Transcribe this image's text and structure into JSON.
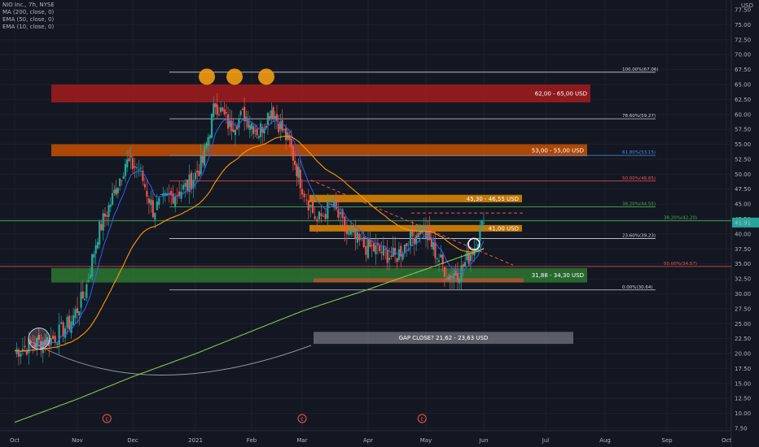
{
  "header": {
    "symbol_line": "NIO Inc., 7h, NYSE",
    "indicators": [
      "MA (200, close, 0)",
      "EMA (50, close, 0)",
      "EMA (10, close, 0)"
    ]
  },
  "colors": {
    "background": "#131722",
    "up": "#26a69a",
    "down": "#ef5350",
    "ma200": "#8bc34a",
    "ema50": "#ff9800",
    "ema10": "#2962ff",
    "resistance_box": "#b71c1c",
    "orange_box": "#d35400",
    "support_box": "#2e7d32",
    "gap_box": "#787b86"
  },
  "chart_data": {
    "type": "candlestick",
    "ylabel": "USD",
    "ylim": [
      7.5,
      77.5
    ],
    "y_ticks": [
      "77.50",
      "75.00",
      "72.50",
      "70.00",
      "67.50",
      "65.00",
      "62.50",
      "60.00",
      "57.50",
      "55.00",
      "52.50",
      "50.00",
      "47.50",
      "45.00",
      "42.50",
      "40.00",
      "37.50",
      "35.00",
      "32.50",
      "30.00",
      "27.50",
      "25.00",
      "22.50",
      "20.00",
      "17.50",
      "15.00",
      "12.50",
      "10.00",
      "7.50"
    ],
    "x_ticks": [
      "Oct",
      "Nov",
      "Dec",
      "2021",
      "Feb",
      "Mar",
      "Apr",
      "May",
      "Jun",
      "Jul",
      "Aug",
      "Sep",
      "Oct"
    ],
    "last_price": "41.91",
    "close_series": [
      {
        "date": "2020-10-01",
        "close": 20.5
      },
      {
        "date": "2020-10-10",
        "close": 21.5
      },
      {
        "date": "2020-10-20",
        "close": 22.5
      },
      {
        "date": "2020-10-28",
        "close": 25.0
      },
      {
        "date": "2020-11-05",
        "close": 30.0
      },
      {
        "date": "2020-11-12",
        "close": 40.0
      },
      {
        "date": "2020-11-20",
        "close": 46.0
      },
      {
        "date": "2020-11-27",
        "close": 52.0
      },
      {
        "date": "2020-12-04",
        "close": 51.0
      },
      {
        "date": "2020-12-11",
        "close": 44.0
      },
      {
        "date": "2020-12-18",
        "close": 46.0
      },
      {
        "date": "2020-12-28",
        "close": 48.0
      },
      {
        "date": "2021-01-05",
        "close": 52.0
      },
      {
        "date": "2021-01-12",
        "close": 62.0
      },
      {
        "date": "2021-01-20",
        "close": 58.0
      },
      {
        "date": "2021-01-28",
        "close": 60.0
      },
      {
        "date": "2021-02-05",
        "close": 57.0
      },
      {
        "date": "2021-02-12",
        "close": 61.0
      },
      {
        "date": "2021-02-22",
        "close": 55.0
      },
      {
        "date": "2021-03-01",
        "close": 48.0
      },
      {
        "date": "2021-03-08",
        "close": 42.0
      },
      {
        "date": "2021-03-15",
        "close": 45.0
      },
      {
        "date": "2021-03-22",
        "close": 40.0
      },
      {
        "date": "2021-03-30",
        "close": 38.0
      },
      {
        "date": "2021-04-08",
        "close": 37.0
      },
      {
        "date": "2021-04-15",
        "close": 36.0
      },
      {
        "date": "2021-04-22",
        "close": 39.0
      },
      {
        "date": "2021-04-29",
        "close": 41.0
      },
      {
        "date": "2021-05-06",
        "close": 37.0
      },
      {
        "date": "2021-05-13",
        "close": 33.0
      },
      {
        "date": "2021-05-20",
        "close": 34.0
      },
      {
        "date": "2021-05-27",
        "close": 38.0
      },
      {
        "date": "2021-06-01",
        "close": 41.91
      }
    ],
    "zones": [
      {
        "label": "62,00 - 65,00 USD",
        "low": 62.0,
        "high": 65.0,
        "color": "resistance_box"
      },
      {
        "label": "53,00 - 55,00 USD",
        "low": 53.0,
        "high": 55.0,
        "color": "orange_box"
      },
      {
        "label": "45,30 - 46,55 USD",
        "low": 45.3,
        "high": 46.55,
        "color": "orange_box"
      },
      {
        "label": "41,00 USD",
        "low": 40.5,
        "high": 41.5,
        "color": "orange_box"
      },
      {
        "label": "31,88 - 34,30 USD",
        "low": 31.88,
        "high": 34.3,
        "color": "support_box"
      },
      {
        "label": "GAP CLOSE? 21,62 - 23,63 USD",
        "low": 21.62,
        "high": 23.63,
        "color": "gap_box"
      }
    ],
    "fib_levels": [
      {
        "label": "100.00%(67.06)",
        "value": 67.06
      },
      {
        "label": "78.60%(59.27)",
        "value": 59.27
      },
      {
        "label": "61.80%(53.15)",
        "value": 53.15
      },
      {
        "label": "50.00%(48.85)",
        "value": 48.85
      },
      {
        "label": "38.20%(44.55)",
        "value": 44.55
      },
      {
        "label": "23.60%(39.23)",
        "value": 39.23
      },
      {
        "label": "0.00%(30.64)",
        "value": 30.64
      }
    ],
    "extra_levels": [
      {
        "label": "38.20%(42.20)",
        "value": 42.2
      },
      {
        "label": "50.00%(34.57)",
        "value": 34.57
      }
    ],
    "earnings_markers": [
      "E",
      "E",
      "E"
    ]
  }
}
